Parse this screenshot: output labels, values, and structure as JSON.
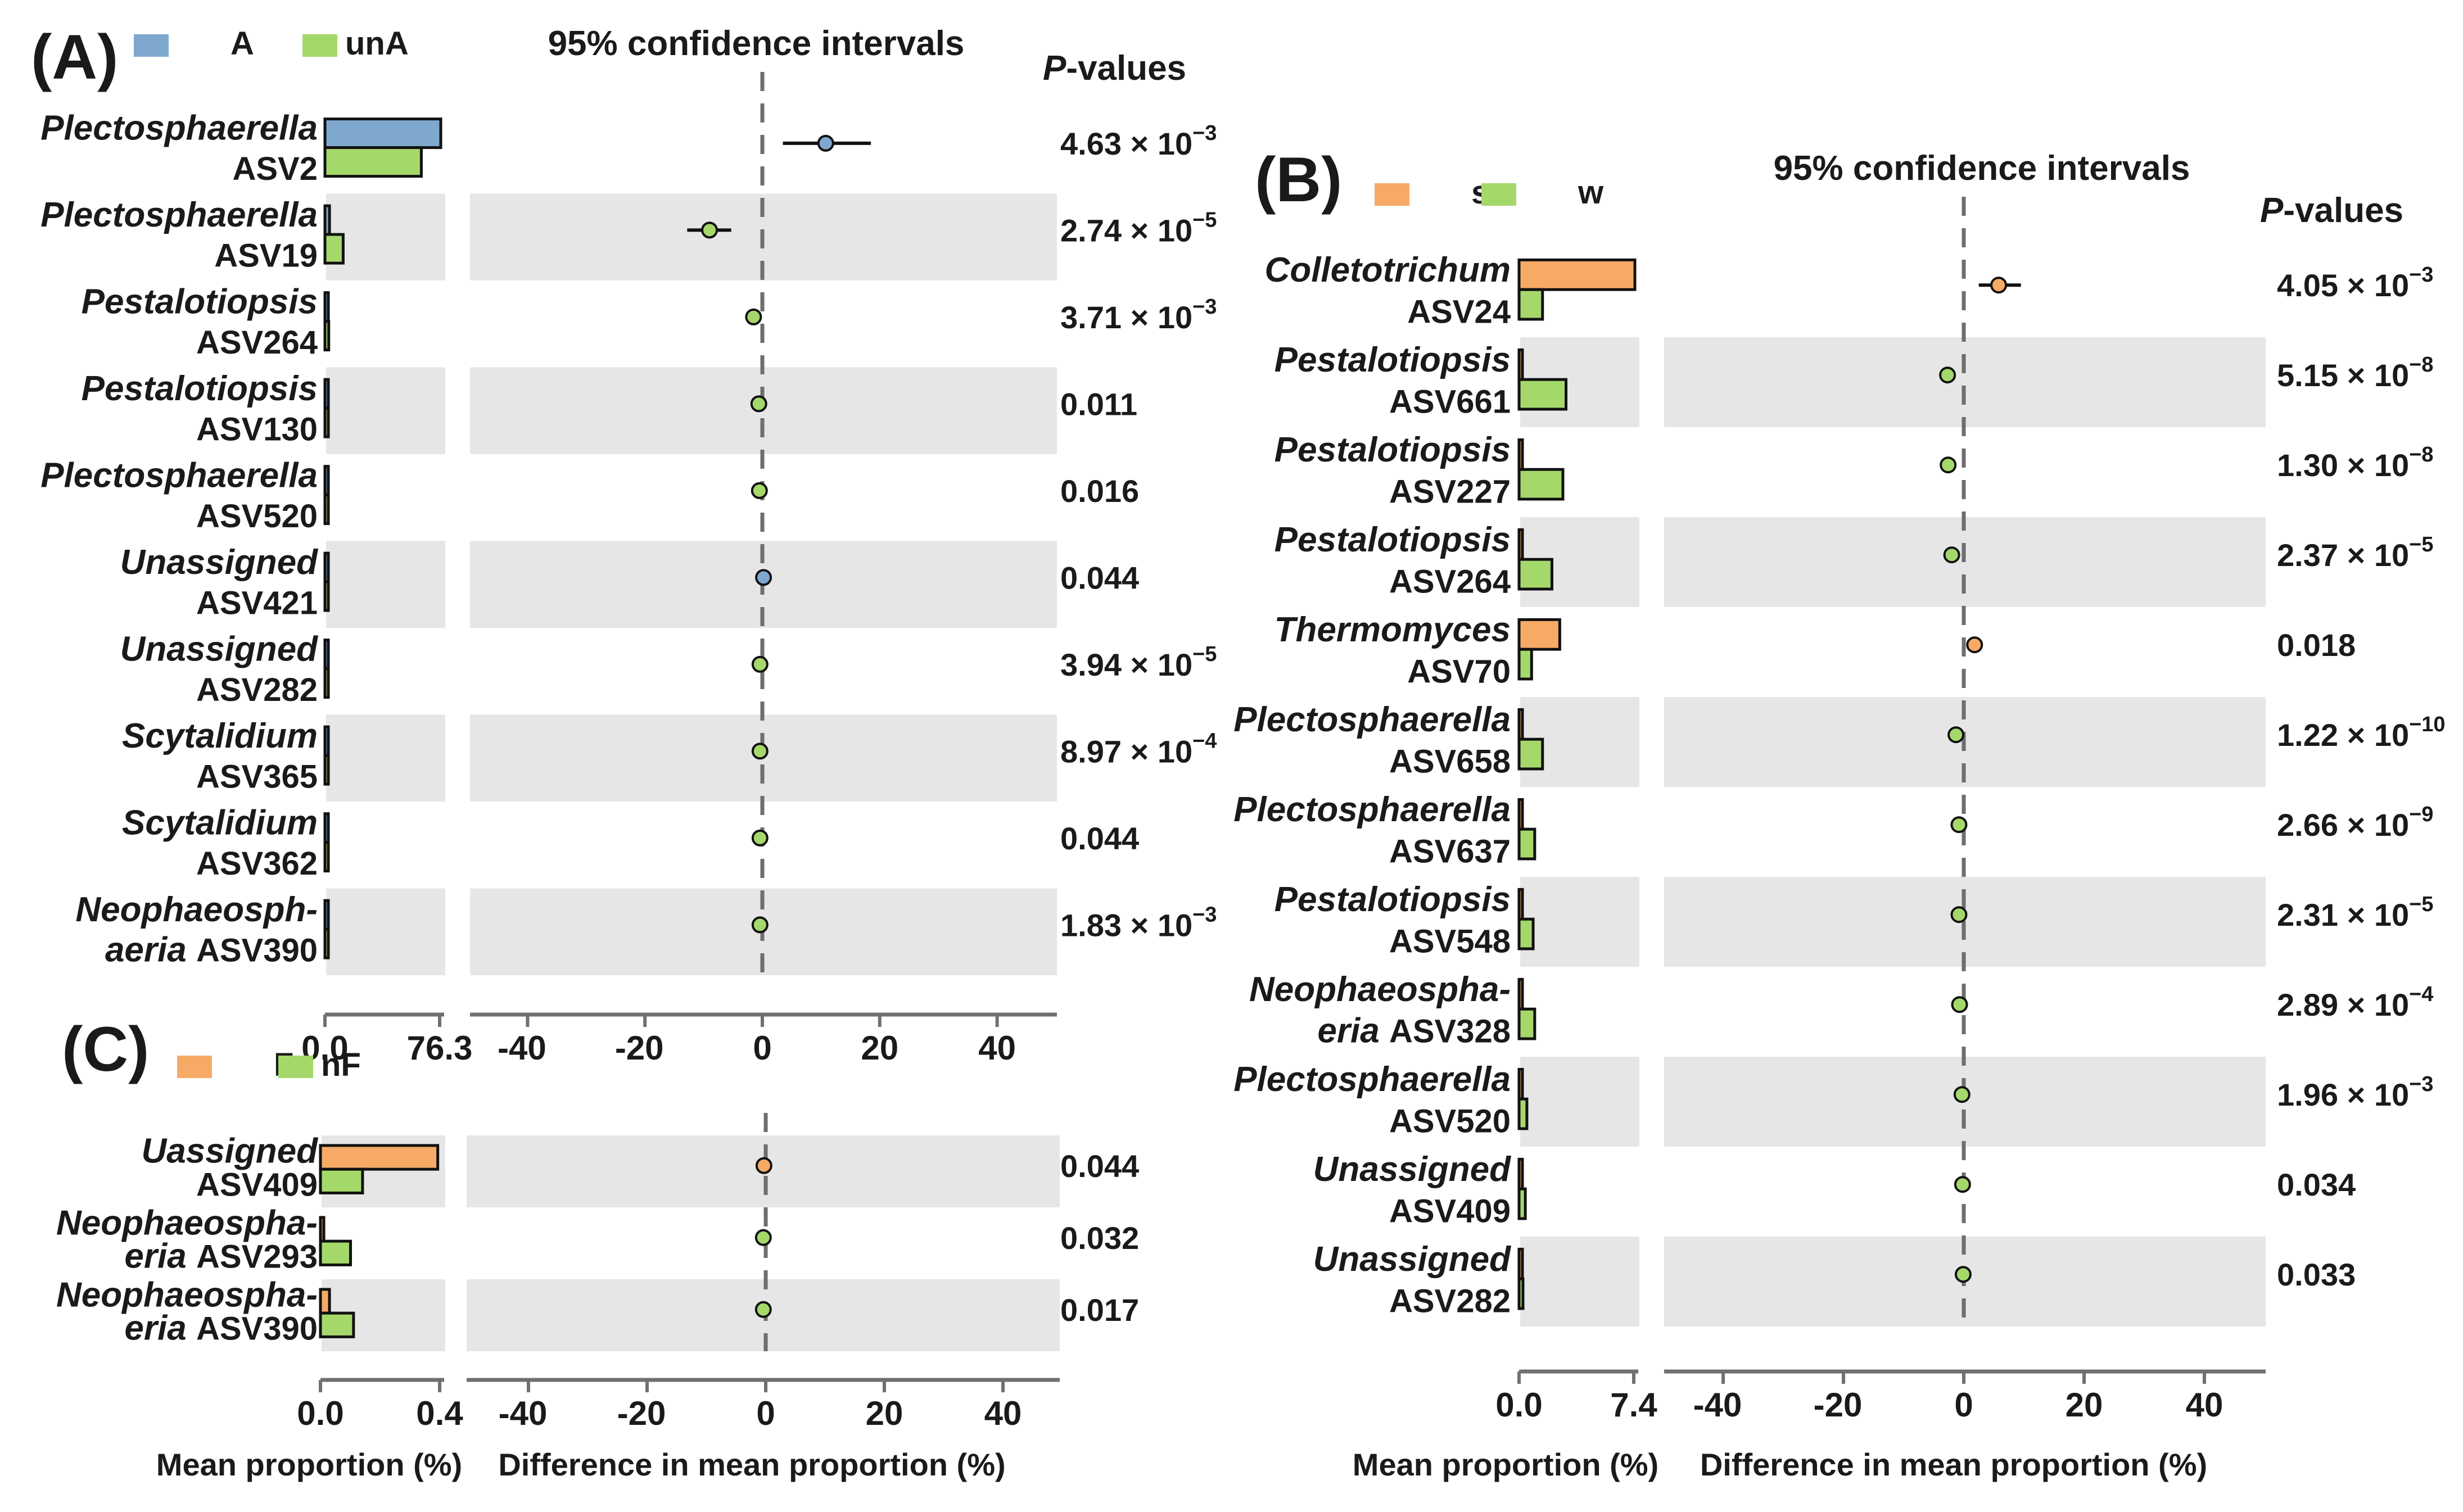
{
  "colors": {
    "blue": "#7fa8cf",
    "green": "#a5d86b",
    "orange": "#f7aa66",
    "stripe": "#e6e6e6",
    "axis": "#707070",
    "dash": "#6e6e6e"
  },
  "chart_data": [
    {
      "id": "A",
      "panel_label": "(A)",
      "type": "extended-error-bar",
      "ci_title": "95% confidence intervals",
      "pvalue_title_italic": "P",
      "pvalue_title_rest": "-values",
      "legend": [
        {
          "name": "A",
          "color": "#7fa8cf"
        },
        {
          "name": "unA",
          "color": "#a5d86b"
        }
      ],
      "mean_axis": {
        "min": 0,
        "max": 76.3,
        "ticks": [
          "0.0",
          "76.3"
        ]
      },
      "diff_axis": {
        "min": -50,
        "max": 50,
        "ticks": [
          -40,
          -20,
          0,
          20,
          40
        ]
      },
      "xlabel_mean": "",
      "xlabel_diff": "",
      "rows": [
        {
          "genus": "Plectosphaerella",
          "asv": "ASV2",
          "g1": 76.3,
          "g2": 63.5,
          "diff": 10.8,
          "lo": 3.5,
          "hi": 18.5,
          "dot": "#7fa8cf",
          "pval": "4.63 × 10",
          "exp": "−3"
        },
        {
          "genus": "Plectosphaerella",
          "asv": "ASV19",
          "g1": 3.0,
          "g2": 12.0,
          "diff": -9.0,
          "lo": -12.8,
          "hi": -5.3,
          "dot": "#a5d86b",
          "pval": "2.74 × 10",
          "exp": "−5"
        },
        {
          "genus": "Pestalotiopsis",
          "asv": "ASV264",
          "g1": 0.4,
          "g2": 2.5,
          "diff": -1.5,
          "lo": -2.5,
          "hi": -0.5,
          "dot": "#a5d86b",
          "pval": "3.71 × 10",
          "exp": "−3"
        },
        {
          "genus": "Pestalotiopsis",
          "asv": "ASV130",
          "g1": 0.3,
          "g2": 1.2,
          "diff": -0.6,
          "lo": -1.2,
          "hi": 0.0,
          "dot": "#a5d86b",
          "pval": "0.011",
          "exp": ""
        },
        {
          "genus": "Plectosphaerella",
          "asv": "ASV520",
          "g1": 0.3,
          "g2": 1.0,
          "diff": -0.5,
          "lo": -1.0,
          "hi": 0.0,
          "dot": "#a5d86b",
          "pval": "0.016",
          "exp": ""
        },
        {
          "genus": "Unassigned",
          "asv": "ASV421",
          "g1": 0.8,
          "g2": 0.3,
          "diff": 0.2,
          "lo": -0.2,
          "hi": 0.6,
          "dot": "#7fa8cf",
          "pval": "0.044",
          "exp": ""
        },
        {
          "genus": "Unassigned",
          "asv": "ASV282",
          "g1": 0.2,
          "g2": 1.0,
          "diff": -0.4,
          "lo": -0.8,
          "hi": 0.0,
          "dot": "#a5d86b",
          "pval": "3.94 × 10",
          "exp": "−5"
        },
        {
          "genus": "Scytalidium",
          "asv": "ASV365",
          "g1": 0.2,
          "g2": 0.9,
          "diff": -0.4,
          "lo": -0.8,
          "hi": 0.0,
          "dot": "#a5d86b",
          "pval": "8.97 × 10",
          "exp": "−4"
        },
        {
          "genus": "Scytalidium",
          "asv": "ASV362",
          "g1": 0.2,
          "g2": 0.8,
          "diff": -0.4,
          "lo": -0.8,
          "hi": 0.0,
          "dot": "#a5d86b",
          "pval": "0.044",
          "exp": ""
        },
        {
          "genus": "Neophaeosph-",
          "genus2": "aeria",
          "asv": "ASV390",
          "g1": 0.2,
          "g2": 0.8,
          "diff": -0.4,
          "lo": -0.8,
          "hi": 0.0,
          "dot": "#a5d86b",
          "pval": "1.83 × 10",
          "exp": "−3"
        }
      ]
    },
    {
      "id": "B",
      "panel_label": "(B)",
      "type": "extended-error-bar",
      "ci_title": "95% confidence intervals",
      "pvalue_title_italic": "P",
      "pvalue_title_rest": "-values",
      "legend": [
        {
          "name": "s",
          "color": "#f7aa66"
        },
        {
          "name": "w",
          "color": "#a5d86b"
        }
      ],
      "mean_axis": {
        "min": 0,
        "max": 7.4,
        "ticks": [
          "0.0",
          "7.4"
        ]
      },
      "diff_axis": {
        "min": -50,
        "max": 50,
        "ticks": [
          -40,
          -20,
          0,
          20,
          40
        ]
      },
      "xlabel_mean": "Mean proportion (%)",
      "xlabel_diff": "Difference in mean proportion (%)",
      "rows": [
        {
          "genus": "Colletotrichum",
          "asv": "ASV24",
          "g1": 7.4,
          "g2": 1.5,
          "diff": 5.8,
          "lo": 2.5,
          "hi": 9.5,
          "dot": "#f7aa66",
          "pval": "4.05 × 10",
          "exp": "−3"
        },
        {
          "genus": "Pestalotiopsis",
          "asv": "ASV661",
          "g1": 0.2,
          "g2": 3.0,
          "diff": -2.7,
          "lo": -3.3,
          "hi": -2.1,
          "dot": "#a5d86b",
          "pval": "5.15 × 10",
          "exp": "−8"
        },
        {
          "genus": "Pestalotiopsis",
          "asv": "ASV227",
          "g1": 0.2,
          "g2": 2.8,
          "diff": -2.6,
          "lo": -3.2,
          "hi": -2.0,
          "dot": "#a5d86b",
          "pval": "1.30 × 10",
          "exp": "−8"
        },
        {
          "genus": "Pestalotiopsis",
          "asv": "ASV264",
          "g1": 0.2,
          "g2": 2.1,
          "diff": -2.0,
          "lo": -2.6,
          "hi": -1.4,
          "dot": "#a5d86b",
          "pval": "2.37 × 10",
          "exp": "−5"
        },
        {
          "genus": "Thermomyces",
          "asv": "ASV70",
          "g1": 2.6,
          "g2": 0.8,
          "diff": 1.8,
          "lo": 1.0,
          "hi": 2.6,
          "dot": "#f7aa66",
          "pval": "0.018",
          "exp": ""
        },
        {
          "genus": "Plectosphaerella",
          "asv": "ASV658",
          "g1": 0.1,
          "g2": 1.5,
          "diff": -1.3,
          "lo": -1.8,
          "hi": -0.8,
          "dot": "#a5d86b",
          "pval": "1.22 × 10",
          "exp": "−10"
        },
        {
          "genus": "Plectosphaerella",
          "asv": "ASV637",
          "g1": 0.1,
          "g2": 1.0,
          "diff": -0.8,
          "lo": -1.2,
          "hi": -0.4,
          "dot": "#a5d86b",
          "pval": "2.66 × 10",
          "exp": "−9"
        },
        {
          "genus": "Pestalotiopsis",
          "asv": "ASV548",
          "g1": 0.1,
          "g2": 0.9,
          "diff": -0.8,
          "lo": -1.2,
          "hi": -0.4,
          "dot": "#a5d86b",
          "pval": "2.31 × 10",
          "exp": "−5"
        },
        {
          "genus": "Neophaeospha-",
          "genus2": "eria",
          "asv": "ASV328",
          "g1": 0.2,
          "g2": 1.0,
          "diff": -0.7,
          "lo": -1.1,
          "hi": -0.3,
          "dot": "#a5d86b",
          "pval": "2.89 × 10",
          "exp": "−4"
        },
        {
          "genus": "Plectosphaerella",
          "asv": "ASV520",
          "g1": 0.05,
          "g2": 0.5,
          "diff": -0.3,
          "lo": -0.6,
          "hi": 0.0,
          "dot": "#a5d86b",
          "pval": "1.96 × 10",
          "exp": "−3"
        },
        {
          "genus": "Unassigned",
          "asv": "ASV409",
          "g1": 0.05,
          "g2": 0.4,
          "diff": -0.2,
          "lo": -0.5,
          "hi": 0.1,
          "dot": "#a5d86b",
          "pval": "0.034",
          "exp": ""
        },
        {
          "genus": "Unassigned",
          "asv": "ASV282",
          "g1": 0.05,
          "g2": 0.25,
          "diff": -0.1,
          "lo": -0.4,
          "hi": 0.2,
          "dot": "#a5d86b",
          "pval": "0.033",
          "exp": ""
        }
      ]
    },
    {
      "id": "C",
      "panel_label": "(C)",
      "type": "extended-error-bar",
      "ci_title": "",
      "pvalue_title_italic": "",
      "pvalue_title_rest": "",
      "legend": [
        {
          "name": "F",
          "color": "#f7aa66"
        },
        {
          "name": "nF",
          "color": "#a5d86b"
        }
      ],
      "mean_axis": {
        "min": 0,
        "max": 0.4,
        "ticks": [
          "0.0",
          "0.4"
        ]
      },
      "diff_axis": {
        "min": -50,
        "max": 50,
        "ticks": [
          -40,
          -20,
          0,
          20,
          40
        ]
      },
      "xlabel_mean": "Mean proportion (%)",
      "xlabel_diff": "Difference in mean proportion (%)",
      "rows": [
        {
          "genus": "Uassigned",
          "asv": "ASV409",
          "g1": 0.39,
          "g2": 0.14,
          "diff": -0.3,
          "lo": -0.7,
          "hi": 0.1,
          "dot": "#f7aa66",
          "pval": "0.044",
          "exp": ""
        },
        {
          "genus": "Neophaeospha-",
          "genus2": "eria",
          "asv": "ASV293",
          "g1": 0.01,
          "g2": 0.1,
          "diff": -0.4,
          "lo": -0.8,
          "hi": 0.0,
          "dot": "#a5d86b",
          "pval": "0.032",
          "exp": ""
        },
        {
          "genus": "Neophaeospha-",
          "genus2": "eria",
          "asv": "ASV390",
          "g1": 0.03,
          "g2": 0.11,
          "diff": -0.4,
          "lo": -0.8,
          "hi": 0.0,
          "dot": "#a5d86b",
          "pval": "0.017",
          "exp": ""
        }
      ]
    }
  ]
}
